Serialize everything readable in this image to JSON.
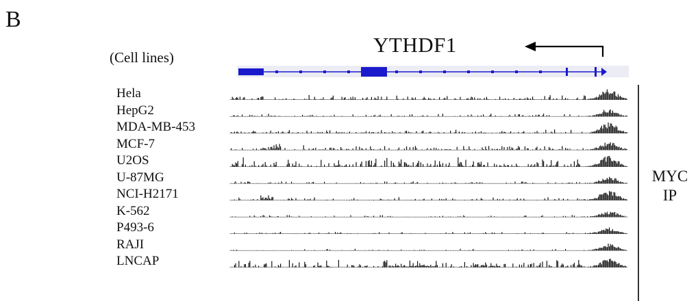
{
  "panel": {
    "letter": "B"
  },
  "header": {
    "cell_lines_label": "(Cell lines)"
  },
  "gene": {
    "name": "YTHDF1",
    "strand_arrow": "arrow-left-icon"
  },
  "tracks": {
    "color": "#111111",
    "rows": [
      {
        "label": "Hela"
      },
      {
        "label": "HepG2"
      },
      {
        "label": "MDA-MB-453"
      },
      {
        "label": "MCF-7"
      },
      {
        "label": "U2OS"
      },
      {
        "label": "U-87MG"
      },
      {
        "label": "NCI-H2171"
      },
      {
        "label": "K-562"
      },
      {
        "label": "P493-6"
      },
      {
        "label": "RAJI"
      },
      {
        "label": "LNCAP"
      }
    ]
  },
  "ip_label": {
    "line1": "MYC",
    "line2": "IP"
  },
  "colors": {
    "gene_model": "#1a1acc",
    "signal": "#111111",
    "gene_band": "#ececf4"
  }
}
